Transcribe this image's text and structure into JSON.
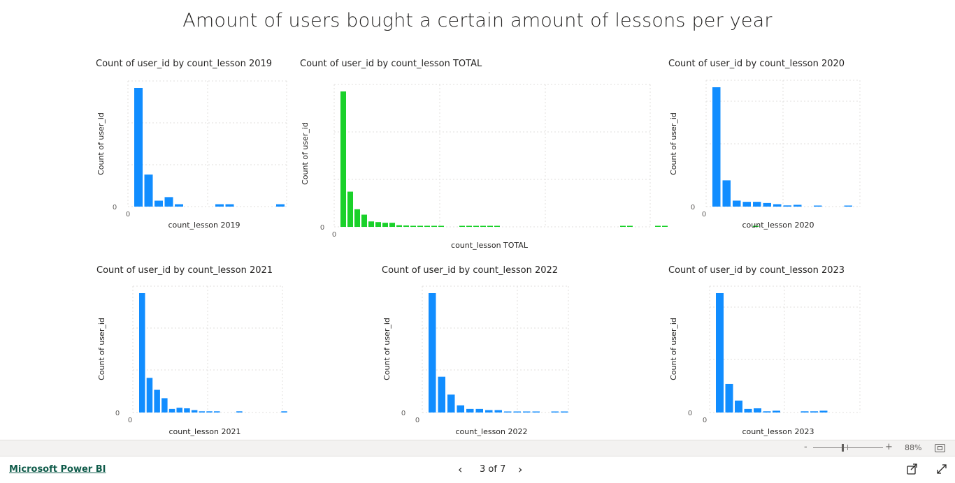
{
  "report": {
    "title": "Amount of users bought a certain amount of lessons per year"
  },
  "chart_data": [
    {
      "type": "bar",
      "title": "Count of user_id by count_lesson 2019",
      "xlabel": "count_lesson 2019",
      "ylabel": "Count of user_id",
      "y_tick": "0",
      "x_tick": "0",
      "color": "#118DFF",
      "grid": true,
      "values": [
        100,
        27,
        5,
        8,
        2,
        0,
        0,
        0,
        2,
        2,
        0,
        0,
        0,
        0,
        2
      ]
    },
    {
      "type": "bar",
      "title": "Count of user_id by count_lesson TOTAL",
      "xlabel": "count_lesson TOTAL",
      "ylabel": "Count of user_id",
      "y_tick": "0",
      "x_tick": "0",
      "color": "#1AD12A",
      "grid": true,
      "values": [
        100,
        26,
        13,
        9,
        4,
        3.5,
        3,
        3,
        1.2,
        1,
        0.8,
        0.8,
        0.8,
        0.6,
        0.6,
        0,
        0,
        0.5,
        0.5,
        0.5,
        0.5,
        0.5,
        0.5,
        0,
        0,
        0,
        0,
        0,
        0,
        0,
        0,
        0,
        0,
        0,
        0,
        0,
        0,
        0,
        0,
        0,
        0.3,
        0.3,
        0,
        0,
        0,
        0.3,
        0.3,
        0,
        0,
        0,
        0,
        0,
        0,
        0,
        0,
        0,
        0,
        0,
        0,
        0.3
      ]
    },
    {
      "type": "bar",
      "title": "Count of user_id by count_lesson 2020",
      "xlabel": "count_lesson 2020",
      "ylabel": "Count of user_id",
      "y_tick": "0",
      "x_tick": "0",
      "color": "#118DFF",
      "grid": true,
      "values": [
        100,
        22,
        5,
        4,
        4,
        3,
        2,
        1,
        1.5,
        0,
        0.8,
        0,
        0,
        0.8
      ]
    },
    {
      "type": "bar",
      "title": "Count of user_id by count_lesson 2021",
      "xlabel": "count_lesson 2021",
      "ylabel": "Count of user_id",
      "y_tick": "0",
      "x_tick": "0",
      "color": "#118DFF",
      "grid": true,
      "values": [
        100,
        29,
        19,
        12,
        3,
        4,
        3.5,
        2,
        1,
        1,
        1,
        0,
        0,
        1,
        0,
        0,
        0,
        0,
        0,
        1
      ]
    },
    {
      "type": "bar",
      "title": "Count of user_id by count_lesson 2022",
      "xlabel": "count_lesson 2022",
      "ylabel": "Count of user_id",
      "y_tick": "0",
      "x_tick": "0",
      "color": "#118DFF",
      "grid": true,
      "values": [
        100,
        30,
        15,
        6,
        3,
        3,
        2,
        2,
        0.7,
        0.7,
        0.7,
        0.7,
        0,
        0.7,
        0.7
      ]
    },
    {
      "type": "bar",
      "title": "Count of user_id by count_lesson 2023",
      "xlabel": "count_lesson 2023",
      "ylabel": "Count of user_id",
      "y_tick": "0",
      "x_tick": "0",
      "color": "#118DFF",
      "grid": true,
      "values": [
        100,
        24,
        10,
        3,
        3.5,
        1,
        1.5,
        0,
        0,
        1,
        1,
        1.5
      ]
    }
  ],
  "zoom": {
    "minus": "-",
    "plus": "+",
    "level": "88%"
  },
  "footer": {
    "brand": "Microsoft Power BI",
    "prev": "‹",
    "next": "›",
    "page_indicator": "3 of 7"
  },
  "icons": {
    "share": "share-icon",
    "fullscreen": "fullscreen-icon",
    "fit_page": "fit-to-page-icon"
  }
}
